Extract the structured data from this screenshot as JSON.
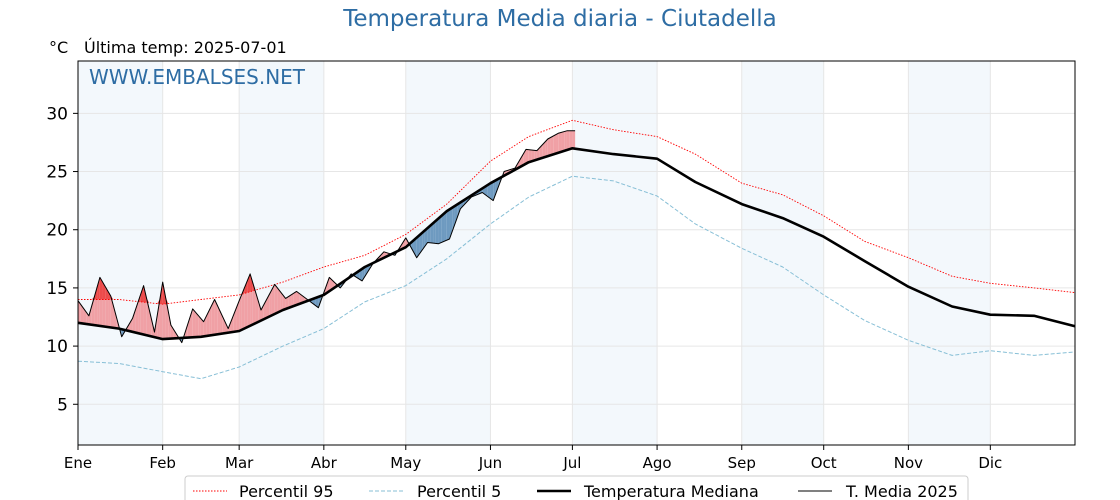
{
  "chart_data": {
    "type": "line",
    "title": "Temperatura Media diaria - Ciutadella",
    "unit_label": "°C",
    "subtitle": "Última temp: 2025-07-01",
    "watermark": "WWW.EMBALSES.NET",
    "x_ticks": [
      "Ene",
      "Feb",
      "Mar",
      "Abr",
      "May",
      "Jun",
      "Jul",
      "Ago",
      "Sep",
      "Oct",
      "Nov",
      "Dic"
    ],
    "y_ticks": [
      5,
      10,
      15,
      20,
      25,
      30
    ],
    "ylim": [
      1.5,
      34.5
    ],
    "xlim": [
      0,
      365
    ],
    "legend_placement": "bottom",
    "colors": {
      "p95": "#ff0000",
      "p5": "#87bfd6",
      "median": "#000000",
      "current": "#000000",
      "above_median_fill": "#f0a0a5",
      "above_p95_fill": "#ec4b4b",
      "below_median_fill": "#6e9ac0",
      "month_band": "#f3f8fc",
      "title": "#2e6da4"
    },
    "series": [
      {
        "name": "Percentil 95",
        "style": "dotted",
        "points": [
          [
            0,
            14.0
          ],
          [
            15,
            14.0
          ],
          [
            31,
            13.6
          ],
          [
            45,
            14.0
          ],
          [
            59,
            14.4
          ],
          [
            75,
            15.5
          ],
          [
            90,
            16.8
          ],
          [
            105,
            17.8
          ],
          [
            120,
            19.6
          ],
          [
            135,
            22.2
          ],
          [
            151,
            25.9
          ],
          [
            165,
            28.0
          ],
          [
            181,
            29.4
          ],
          [
            196,
            28.6
          ],
          [
            212,
            28.0
          ],
          [
            226,
            26.5
          ],
          [
            243,
            24.0
          ],
          [
            258,
            23.0
          ],
          [
            273,
            21.2
          ],
          [
            288,
            19.0
          ],
          [
            304,
            17.6
          ],
          [
            320,
            16.0
          ],
          [
            334,
            15.4
          ],
          [
            350,
            15.0
          ],
          [
            365,
            14.6
          ]
        ]
      },
      {
        "name": "Percentil 5",
        "style": "dashed",
        "points": [
          [
            0,
            8.7
          ],
          [
            15,
            8.5
          ],
          [
            31,
            7.8
          ],
          [
            45,
            7.2
          ],
          [
            59,
            8.2
          ],
          [
            75,
            10.0
          ],
          [
            90,
            11.5
          ],
          [
            105,
            13.8
          ],
          [
            120,
            15.2
          ],
          [
            135,
            17.5
          ],
          [
            151,
            20.5
          ],
          [
            165,
            22.8
          ],
          [
            181,
            24.6
          ],
          [
            196,
            24.2
          ],
          [
            212,
            22.9
          ],
          [
            226,
            20.5
          ],
          [
            243,
            18.4
          ],
          [
            258,
            16.8
          ],
          [
            273,
            14.4
          ],
          [
            288,
            12.2
          ],
          [
            304,
            10.5
          ],
          [
            320,
            9.2
          ],
          [
            334,
            9.6
          ],
          [
            350,
            9.2
          ],
          [
            365,
            9.5
          ]
        ]
      },
      {
        "name": "Temperatura Mediana",
        "style": "solid-thick",
        "points": [
          [
            0,
            12.0
          ],
          [
            15,
            11.5
          ],
          [
            31,
            10.6
          ],
          [
            45,
            10.8
          ],
          [
            59,
            11.3
          ],
          [
            75,
            13.1
          ],
          [
            90,
            14.4
          ],
          [
            105,
            16.8
          ],
          [
            120,
            18.5
          ],
          [
            135,
            21.6
          ],
          [
            151,
            24.0
          ],
          [
            165,
            25.8
          ],
          [
            181,
            27.0
          ],
          [
            196,
            26.5
          ],
          [
            212,
            26.1
          ],
          [
            226,
            24.1
          ],
          [
            243,
            22.2
          ],
          [
            258,
            21.0
          ],
          [
            273,
            19.4
          ],
          [
            288,
            17.3
          ],
          [
            304,
            15.1
          ],
          [
            320,
            13.4
          ],
          [
            334,
            12.7
          ],
          [
            350,
            12.6
          ],
          [
            365,
            11.7
          ]
        ]
      },
      {
        "name": "T. Media 2025",
        "style": "solid-thin",
        "points": [
          [
            0,
            13.9
          ],
          [
            4,
            12.6
          ],
          [
            8,
            15.9
          ],
          [
            12,
            14.3
          ],
          [
            16,
            10.8
          ],
          [
            20,
            12.4
          ],
          [
            24,
            15.2
          ],
          [
            28,
            11.2
          ],
          [
            31,
            15.5
          ],
          [
            34,
            11.8
          ],
          [
            38,
            10.3
          ],
          [
            42,
            13.2
          ],
          [
            46,
            12.1
          ],
          [
            50,
            14.0
          ],
          [
            55,
            11.5
          ],
          [
            59,
            13.9
          ],
          [
            63,
            16.2
          ],
          [
            67,
            13.1
          ],
          [
            72,
            15.3
          ],
          [
            76,
            14.1
          ],
          [
            80,
            14.7
          ],
          [
            84,
            14.0
          ],
          [
            88,
            13.3
          ],
          [
            92,
            15.9
          ],
          [
            96,
            15.0
          ],
          [
            100,
            16.2
          ],
          [
            104,
            15.6
          ],
          [
            108,
            17.1
          ],
          [
            112,
            18.1
          ],
          [
            116,
            17.8
          ],
          [
            120,
            19.3
          ],
          [
            124,
            17.6
          ],
          [
            128,
            18.9
          ],
          [
            132,
            18.8
          ],
          [
            136,
            19.2
          ],
          [
            140,
            21.8
          ],
          [
            144,
            22.8
          ],
          [
            148,
            23.2
          ],
          [
            152,
            22.5
          ],
          [
            156,
            25.0
          ],
          [
            160,
            25.3
          ],
          [
            164,
            26.9
          ],
          [
            168,
            26.8
          ],
          [
            172,
            27.8
          ],
          [
            176,
            28.3
          ],
          [
            179,
            28.5
          ],
          [
            182,
            28.5
          ]
        ]
      }
    ]
  },
  "legend": [
    {
      "label": "Percentil 95",
      "key": "p95"
    },
    {
      "label": "Percentil 5",
      "key": "p5"
    },
    {
      "label": "Temperatura Mediana",
      "key": "median"
    },
    {
      "label": "T. Media 2025",
      "key": "current"
    }
  ]
}
